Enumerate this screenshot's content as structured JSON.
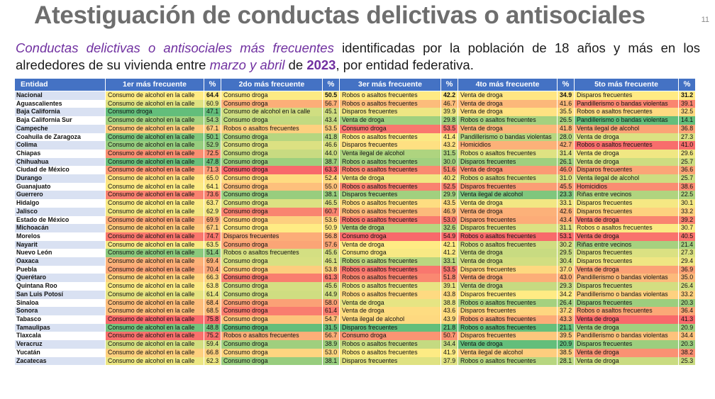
{
  "title": "Atestiguación de conductas delictivas o antisociales",
  "page_number": "11",
  "subtitle": {
    "part1": "Conductas delictivas o antisociales más frecuentes",
    "part2": " identificadas por la población de 18 años y más en los alrededores de su vivienda entre ",
    "part3": "marzo y abril",
    "part4": " de ",
    "year": "2023",
    "part5": ", por entidad federativa."
  },
  "table": {
    "headers": [
      "Entidad",
      "1er más frecuente",
      "%",
      "2do más frecuente",
      "%",
      "3er más frecuente",
      "%",
      "4to más frecuente",
      "%",
      "5to más frecuente",
      "%"
    ],
    "rows": [
      {
        "entidad": "Nacional",
        "cells": [
          [
            "Consumo de alcohol en la calle",
            64.4
          ],
          [
            "Consumo droga",
            50.5
          ],
          [
            "Robos o asaltos frecuentes",
            42.2
          ],
          [
            "Venta de droga",
            34.9
          ],
          [
            "Disparos frecuentes",
            31.2
          ]
        ]
      },
      {
        "entidad": "Aguascalientes",
        "cells": [
          [
            "Consumo de alcohol en la calle",
            60.9
          ],
          [
            "Consumo droga",
            56.7
          ],
          [
            "Robos o asaltos frecuentes",
            46.7
          ],
          [
            "Venta de droga",
            41.6
          ],
          [
            "Pandillerismo o bandas violentas",
            39.1
          ]
        ]
      },
      {
        "entidad": "Baja California",
        "cells": [
          [
            "Consumo droga",
            47.1
          ],
          [
            "Consumo de alcohol en la calle",
            45.1
          ],
          [
            "Disparos frecuentes",
            39.9
          ],
          [
            "Venta de droga",
            35.5
          ],
          [
            "Robos o asaltos frecuentes",
            32.5
          ]
        ]
      },
      {
        "entidad": "Baja California Sur",
        "cells": [
          [
            "Consumo de alcohol en la calle",
            54.3
          ],
          [
            "Consumo droga",
            43.4
          ],
          [
            "Venta de droga",
            29.8
          ],
          [
            "Robos o asaltos frecuentes",
            26.5
          ],
          [
            "Pandillerismo o bandas violentas",
            14.1
          ]
        ]
      },
      {
        "entidad": "Campeche",
        "cells": [
          [
            "Consumo de alcohol en la calle",
            67.1
          ],
          [
            "Robos o asaltos frecuentes",
            53.5
          ],
          [
            "Consumo droga",
            53.5
          ],
          [
            "Venta de droga",
            41.8
          ],
          [
            "Venta ilegal de alcohol",
            36.8
          ]
        ]
      },
      {
        "entidad": "Coahuila de Zaragoza",
        "cells": [
          [
            "Consumo de alcohol en la calle",
            50.1
          ],
          [
            "Consumo droga",
            41.8
          ],
          [
            "Robos o asaltos frecuentes",
            41.4
          ],
          [
            "Pandillerismo o bandas violentas",
            28.0
          ],
          [
            "Venta de droga",
            27.3
          ]
        ]
      },
      {
        "entidad": "Colima",
        "cells": [
          [
            "Consumo de alcohol en la calle",
            52.9
          ],
          [
            "Consumo droga",
            46.6
          ],
          [
            "Disparos frecuentes",
            43.2
          ],
          [
            "Homicidios",
            42.7
          ],
          [
            "Robos o asaltos frecuentes",
            41.0
          ]
        ]
      },
      {
        "entidad": "Chiapas",
        "cells": [
          [
            "Consumo de alcohol en la calle",
            72.5
          ],
          [
            "Consumo droga",
            44.0
          ],
          [
            "Venta ilegal de alcohol",
            31.5
          ],
          [
            "Robos o asaltos frecuentes",
            31.4
          ],
          [
            "Venta de droga",
            29.6
          ]
        ]
      },
      {
        "entidad": "Chihuahua",
        "cells": [
          [
            "Consumo de alcohol en la calle",
            47.8
          ],
          [
            "Consumo droga",
            38.7
          ],
          [
            "Robos o asaltos frecuentes",
            30.0
          ],
          [
            "Disparos frecuentes",
            26.1
          ],
          [
            "Venta de droga",
            25.7
          ]
        ]
      },
      {
        "entidad": "Ciudad de México",
        "cells": [
          [
            "Consumo de alcohol en la calle",
            71.3
          ],
          [
            "Consumo droga",
            63.3
          ],
          [
            "Robos o asaltos frecuentes",
            51.6
          ],
          [
            "Venta de droga",
            46.0
          ],
          [
            "Disparos frecuentes",
            36.6
          ]
        ]
      },
      {
        "entidad": "Durango",
        "cells": [
          [
            "Consumo de alcohol en la calle",
            65.0
          ],
          [
            "Consumo droga",
            52.4
          ],
          [
            "Venta de droga",
            40.2
          ],
          [
            "Robos o asaltos frecuentes",
            31.0
          ],
          [
            "Venta ilegal de alcohol",
            25.7
          ]
        ]
      },
      {
        "entidad": "Guanajuato",
        "cells": [
          [
            "Consumo de alcohol en la calle",
            64.1
          ],
          [
            "Consumo droga",
            55.0
          ],
          [
            "Robos o asaltos frecuentes",
            52.5
          ],
          [
            "Disparos frecuentes",
            45.5
          ],
          [
            "Homicidios",
            38.6
          ]
        ]
      },
      {
        "entidad": "Guerrero",
        "cells": [
          [
            "Consumo de alcohol en la calle",
            73.6
          ],
          [
            "Consumo droga",
            38.1
          ],
          [
            "Disparos frecuentes",
            29.9
          ],
          [
            "Venta ilegal de alcohol",
            23.3
          ],
          [
            "Riñas entre vecinos",
            22.5
          ]
        ]
      },
      {
        "entidad": "Hidalgo",
        "cells": [
          [
            "Consumo de alcohol en la calle",
            63.7
          ],
          [
            "Consumo droga",
            46.5
          ],
          [
            "Robos o asaltos frecuentes",
            43.5
          ],
          [
            "Venta de droga",
            33.1
          ],
          [
            "Disparos frecuentes",
            30.1
          ]
        ]
      },
      {
        "entidad": "Jalisco",
        "cells": [
          [
            "Consumo de alcohol en la calle",
            62.9
          ],
          [
            "Consumo droga",
            60.7
          ],
          [
            "Robos o asaltos frecuentes",
            46.9
          ],
          [
            "Venta de droga",
            42.6
          ],
          [
            "Disparos frecuentes",
            33.2
          ]
        ]
      },
      {
        "entidad": "Estado de México",
        "cells": [
          [
            "Consumo de alcohol en la calle",
            69.9
          ],
          [
            "Consumo droga",
            53.6
          ],
          [
            "Robos o asaltos frecuentes",
            53.0
          ],
          [
            "Disparos frecuentes",
            43.4
          ],
          [
            "Venta de droga",
            39.2
          ]
        ]
      },
      {
        "entidad": "Michoacán",
        "cells": [
          [
            "Consumo de alcohol en la calle",
            67.1
          ],
          [
            "Consumo droga",
            50.9
          ],
          [
            "Venta de droga",
            32.6
          ],
          [
            "Disparos frecuentes",
            31.1
          ],
          [
            "Robos o asaltos frecuentes",
            30.7
          ]
        ]
      },
      {
        "entidad": "Morelos",
        "cells": [
          [
            "Consumo de alcohol en la calle",
            74.7
          ],
          [
            "Disparos frecuentes",
            56.8
          ],
          [
            "Consumo droga",
            54.9
          ],
          [
            "Robos o asaltos frecuentes",
            53.1
          ],
          [
            "Venta de droga",
            40.5
          ]
        ]
      },
      {
        "entidad": "Nayarit",
        "cells": [
          [
            "Consumo de alcohol en la calle",
            63.5
          ],
          [
            "Consumo droga",
            57.6
          ],
          [
            "Venta de droga",
            42.1
          ],
          [
            "Robos o asaltos frecuentes",
            30.2
          ],
          [
            "Riñas entre vecinos",
            21.4
          ]
        ]
      },
      {
        "entidad": "Nuevo León",
        "cells": [
          [
            "Consumo de alcohol en la calle",
            51.4
          ],
          [
            "Robos o asaltos frecuentes",
            45.6
          ],
          [
            "Consumo droga",
            41.2
          ],
          [
            "Venta de droga",
            29.5
          ],
          [
            "Disparos frecuentes",
            27.3
          ]
        ]
      },
      {
        "entidad": "Oaxaca",
        "cells": [
          [
            "Consumo de alcohol en la calle",
            69.4
          ],
          [
            "Consumo droga",
            46.1
          ],
          [
            "Robos o asaltos frecuentes",
            33.1
          ],
          [
            "Venta de droga",
            30.4
          ],
          [
            "Disparos frecuentes",
            29.4
          ]
        ]
      },
      {
        "entidad": "Puebla",
        "cells": [
          [
            "Consumo de alcohol en la calle",
            70.4
          ],
          [
            "Consumo droga",
            53.8
          ],
          [
            "Robos o asaltos frecuentes",
            53.5
          ],
          [
            "Disparos frecuentes",
            37.0
          ],
          [
            "Venta de droga",
            36.9
          ]
        ]
      },
      {
        "entidad": "Querétaro",
        "cells": [
          [
            "Consumo de alcohol en la calle",
            66.3
          ],
          [
            "Consumo droga",
            61.3
          ],
          [
            "Robos o asaltos frecuentes",
            51.8
          ],
          [
            "Venta de droga",
            43.0
          ],
          [
            "Pandillerismo o bandas violentas",
            35.0
          ]
        ]
      },
      {
        "entidad": "Quintana Roo",
        "cells": [
          [
            "Consumo de alcohol en la calle",
            63.8
          ],
          [
            "Consumo droga",
            45.6
          ],
          [
            "Robos o asaltos frecuentes",
            39.1
          ],
          [
            "Venta de droga",
            29.3
          ],
          [
            "Disparos frecuentes",
            26.4
          ]
        ]
      },
      {
        "entidad": "San Luis Potosí",
        "cells": [
          [
            "Consumo de alcohol en la calle",
            61.4
          ],
          [
            "Consumo droga",
            44.9
          ],
          [
            "Robos o asaltos frecuentes",
            43.8
          ],
          [
            "Disparos frecuentes",
            34.2
          ],
          [
            "Pandillerismo o bandas violentas",
            33.2
          ]
        ]
      },
      {
        "entidad": "Sinaloa",
        "cells": [
          [
            "Consumo de alcohol en la calle",
            68.4
          ],
          [
            "Consumo droga",
            58.0
          ],
          [
            "Venta de droga",
            38.8
          ],
          [
            "Robos o asaltos frecuentes",
            26.4
          ],
          [
            "Disparos frecuentes",
            20.3
          ]
        ]
      },
      {
        "entidad": "Sonora",
        "cells": [
          [
            "Consumo de alcohol en la calle",
            68.5
          ],
          [
            "Consumo droga",
            61.4
          ],
          [
            "Venta de droga",
            43.6
          ],
          [
            "Disparos frecuentes",
            37.2
          ],
          [
            "Robos o asaltos frecuentes",
            36.4
          ]
        ]
      },
      {
        "entidad": "Tabasco",
        "cells": [
          [
            "Consumo de alcohol en la calle",
            75.8
          ],
          [
            "Consumo droga",
            54.7
          ],
          [
            "Venta ilegal de alcohol",
            43.9
          ],
          [
            "Robos o asaltos frecuentes",
            43.3
          ],
          [
            "Venta de droga",
            41.3
          ]
        ]
      },
      {
        "entidad": "Tamaulipas",
        "cells": [
          [
            "Consumo de alcohol en la calle",
            48.8
          ],
          [
            "Consumo droga",
            31.5
          ],
          [
            "Disparos frecuentes",
            21.8
          ],
          [
            "Robos o asaltos frecuentes",
            21.1
          ],
          [
            "Venta de droga",
            20.9
          ]
        ]
      },
      {
        "entidad": "Tlaxcala",
        "cells": [
          [
            "Consumo de alcohol en la calle",
            75.2
          ],
          [
            "Robos o asaltos frecuentes",
            56.7
          ],
          [
            "Consumo droga",
            50.7
          ],
          [
            "Disparos frecuentes",
            39.5
          ],
          [
            "Pandillerismo o bandas violentas",
            34.4
          ]
        ]
      },
      {
        "entidad": "Veracruz",
        "cells": [
          [
            "Consumo de alcohol en la calle",
            59.4
          ],
          [
            "Consumo droga",
            38.9
          ],
          [
            "Robos o asaltos frecuentes",
            34.4
          ],
          [
            "Venta de droga",
            20.9
          ],
          [
            "Disparos frecuentes",
            20.3
          ]
        ]
      },
      {
        "entidad": "Yucatán",
        "cells": [
          [
            "Consumo de alcohol en la calle",
            66.8
          ],
          [
            "Consumo droga",
            53.0
          ],
          [
            "Robos o asaltos frecuentes",
            41.9
          ],
          [
            "Venta ilegal de alcohol",
            38.5
          ],
          [
            "Venta de droga",
            38.2
          ]
        ]
      },
      {
        "entidad": "Zacatecas",
        "cells": [
          [
            "Consumo de alcohol en la calle",
            62.3
          ],
          [
            "Consumo droga",
            38.1
          ],
          [
            "Disparos frecuentes",
            37.9
          ],
          [
            "Robos o asaltos frecuentes",
            28.1
          ],
          [
            "Venta de droga",
            25.3
          ]
        ]
      }
    ]
  },
  "colors": {
    "header_bg": "#4472c4",
    "scale_low": "#63be7b",
    "scale_mid": "#ffeb84",
    "scale_high": "#f8696b"
  }
}
